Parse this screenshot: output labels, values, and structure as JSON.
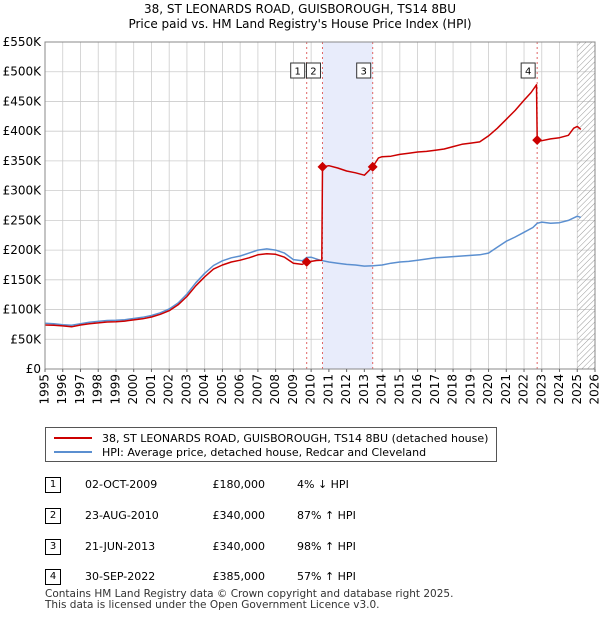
{
  "title": {
    "line1": "38, ST LEONARDS ROAD, GUISBOROUGH, TS14 8BU",
    "line2": "Price paid vs. HM Land Registry's House Price Index (HPI)"
  },
  "colors": {
    "price_line": "#cc0000",
    "hpi_line": "#5b8fd0",
    "shade": "#e8ecfb",
    "marker_dash": "#e06666",
    "grid": "#cccccc"
  },
  "chart_data": {
    "type": "line",
    "title": "Price paid vs. HM Land Registry's House Price Index (HPI)",
    "xlabel": "",
    "ylabel": "",
    "xlim": [
      1995,
      2026
    ],
    "ylim": [
      0,
      550000
    ],
    "x_ticks": [
      1995,
      1996,
      1997,
      1998,
      1999,
      2000,
      2001,
      2002,
      2003,
      2004,
      2005,
      2006,
      2007,
      2008,
      2009,
      2010,
      2011,
      2012,
      2013,
      2014,
      2015,
      2016,
      2017,
      2018,
      2019,
      2020,
      2021,
      2022,
      2023,
      2024,
      2025,
      2026
    ],
    "y_ticks": [
      {
        "value": 0,
        "label": "£0"
      },
      {
        "value": 50000,
        "label": "£50K"
      },
      {
        "value": 100000,
        "label": "£100K"
      },
      {
        "value": 150000,
        "label": "£150K"
      },
      {
        "value": 200000,
        "label": "£200K"
      },
      {
        "value": 250000,
        "label": "£250K"
      },
      {
        "value": 300000,
        "label": "£300K"
      },
      {
        "value": 350000,
        "label": "£350K"
      },
      {
        "value": 400000,
        "label": "£400K"
      },
      {
        "value": 450000,
        "label": "£450K"
      },
      {
        "value": 500000,
        "label": "£500K"
      },
      {
        "value": 550000,
        "label": "£550K"
      }
    ],
    "shaded_ranges": [
      [
        2010.65,
        2013.47
      ]
    ],
    "hatched_from": 2025.0,
    "series": [
      {
        "name": "38, ST LEONARDS ROAD, GUISBOROUGH, TS14 8BU (detached house)",
        "color": "#cc0000",
        "points": [
          [
            1995.0,
            74000
          ],
          [
            1995.5,
            73500
          ],
          [
            1996.0,
            72500
          ],
          [
            1996.5,
            71000
          ],
          [
            1997.0,
            74000
          ],
          [
            1997.5,
            76000
          ],
          [
            1998.0,
            77500
          ],
          [
            1998.5,
            79000
          ],
          [
            1999.0,
            79500
          ],
          [
            1999.5,
            80500
          ],
          [
            2000.0,
            82500
          ],
          [
            2000.5,
            84500
          ],
          [
            2001.0,
            87500
          ],
          [
            2001.5,
            92000
          ],
          [
            2002.0,
            98000
          ],
          [
            2002.5,
            108000
          ],
          [
            2003.0,
            122000
          ],
          [
            2003.5,
            140000
          ],
          [
            2004.0,
            155000
          ],
          [
            2004.5,
            168000
          ],
          [
            2005.0,
            175000
          ],
          [
            2005.5,
            180000
          ],
          [
            2006.0,
            183000
          ],
          [
            2006.5,
            187000
          ],
          [
            2007.0,
            192000
          ],
          [
            2007.5,
            194000
          ],
          [
            2008.0,
            193000
          ],
          [
            2008.5,
            188000
          ],
          [
            2009.0,
            178000
          ],
          [
            2009.5,
            176000
          ],
          [
            2009.75,
            180000
          ],
          [
            2010.0,
            181000
          ],
          [
            2010.3,
            182500
          ],
          [
            2010.6,
            183000
          ],
          [
            2010.64,
            340000
          ],
          [
            2011.0,
            342000
          ],
          [
            2011.5,
            338000
          ],
          [
            2012.0,
            333000
          ],
          [
            2012.5,
            330000
          ],
          [
            2013.0,
            326000
          ],
          [
            2013.47,
            340000
          ],
          [
            2013.8,
            355000
          ],
          [
            2014.0,
            357000
          ],
          [
            2014.5,
            358000
          ],
          [
            2015.0,
            361000
          ],
          [
            2015.5,
            363000
          ],
          [
            2016.0,
            365000
          ],
          [
            2016.5,
            366000
          ],
          [
            2017.0,
            368000
          ],
          [
            2017.5,
            370000
          ],
          [
            2018.0,
            374000
          ],
          [
            2018.5,
            378000
          ],
          [
            2019.0,
            380000
          ],
          [
            2019.5,
            382000
          ],
          [
            2020.0,
            392000
          ],
          [
            2020.5,
            405000
          ],
          [
            2021.0,
            420000
          ],
          [
            2021.5,
            435000
          ],
          [
            2022.0,
            452000
          ],
          [
            2022.4,
            465000
          ],
          [
            2022.7,
            478000
          ],
          [
            2022.74,
            385000
          ],
          [
            2023.0,
            384000
          ],
          [
            2023.5,
            387000
          ],
          [
            2024.0,
            389000
          ],
          [
            2024.5,
            393000
          ],
          [
            2024.8,
            405000
          ],
          [
            2025.0,
            408000
          ],
          [
            2025.2,
            403000
          ]
        ]
      },
      {
        "name": "HPI: Average price, detached house, Redcar and Cleveland",
        "color": "#5b8fd0",
        "points": [
          [
            1995.0,
            77000
          ],
          [
            1995.5,
            76000
          ],
          [
            1996.0,
            74500
          ],
          [
            1996.5,
            73500
          ],
          [
            1997.0,
            76000
          ],
          [
            1997.5,
            78500
          ],
          [
            1998.0,
            80000
          ],
          [
            1998.5,
            81500
          ],
          [
            1999.0,
            82000
          ],
          [
            1999.5,
            83000
          ],
          [
            2000.0,
            85000
          ],
          [
            2000.5,
            87000
          ],
          [
            2001.0,
            90000
          ],
          [
            2001.5,
            94500
          ],
          [
            2002.0,
            101000
          ],
          [
            2002.5,
            111000
          ],
          [
            2003.0,
            126000
          ],
          [
            2003.5,
            145000
          ],
          [
            2004.0,
            161000
          ],
          [
            2004.5,
            174000
          ],
          [
            2005.0,
            182000
          ],
          [
            2005.5,
            187000
          ],
          [
            2006.0,
            190000
          ],
          [
            2006.5,
            195000
          ],
          [
            2007.0,
            200000
          ],
          [
            2007.5,
            202000
          ],
          [
            2008.0,
            200000
          ],
          [
            2008.5,
            195000
          ],
          [
            2009.0,
            184000
          ],
          [
            2009.5,
            182000
          ],
          [
            2009.75,
            187500
          ],
          [
            2010.0,
            188000
          ],
          [
            2010.5,
            183000
          ],
          [
            2011.0,
            180000
          ],
          [
            2011.5,
            178000
          ],
          [
            2012.0,
            176000
          ],
          [
            2012.5,
            175000
          ],
          [
            2013.0,
            173000
          ],
          [
            2013.5,
            173500
          ],
          [
            2014.0,
            175000
          ],
          [
            2014.5,
            178000
          ],
          [
            2015.0,
            180000
          ],
          [
            2015.5,
            181000
          ],
          [
            2016.0,
            183000
          ],
          [
            2016.5,
            185000
          ],
          [
            2017.0,
            187000
          ],
          [
            2017.5,
            188000
          ],
          [
            2018.0,
            189000
          ],
          [
            2018.5,
            190000
          ],
          [
            2019.0,
            191000
          ],
          [
            2019.5,
            192000
          ],
          [
            2020.0,
            195000
          ],
          [
            2020.5,
            205000
          ],
          [
            2021.0,
            215000
          ],
          [
            2021.5,
            222000
          ],
          [
            2022.0,
            230000
          ],
          [
            2022.5,
            238000
          ],
          [
            2022.74,
            245000
          ],
          [
            2023.0,
            247000
          ],
          [
            2023.5,
            245000
          ],
          [
            2024.0,
            246000
          ],
          [
            2024.5,
            250000
          ],
          [
            2025.0,
            257000
          ],
          [
            2025.2,
            255000
          ]
        ]
      }
    ],
    "transactions": [
      {
        "id": "1",
        "x": 2009.75,
        "y": 180000
      },
      {
        "id": "2",
        "x": 2010.64,
        "y": 340000
      },
      {
        "id": "3",
        "x": 2013.47,
        "y": 340000
      },
      {
        "id": "4",
        "x": 2022.74,
        "y": 385000
      }
    ]
  },
  "legend": {
    "price_label": "38, ST LEONARDS ROAD, GUISBOROUGH, TS14 8BU (detached house)",
    "hpi_label": "HPI: Average price, detached house, Redcar and Cleveland"
  },
  "table": [
    {
      "id": "1",
      "date": "02-OCT-2009",
      "price": "£180,000",
      "hpi": "4% ↓ HPI"
    },
    {
      "id": "2",
      "date": "23-AUG-2010",
      "price": "£340,000",
      "hpi": "87% ↑ HPI"
    },
    {
      "id": "3",
      "date": "21-JUN-2013",
      "price": "£340,000",
      "hpi": "98% ↑ HPI"
    },
    {
      "id": "4",
      "date": "30-SEP-2022",
      "price": "£385,000",
      "hpi": "57% ↑ HPI"
    }
  ],
  "footer": {
    "line1": "Contains HM Land Registry data © Crown copyright and database right 2025.",
    "line2": "This data is licensed under the Open Government Licence v3.0."
  }
}
